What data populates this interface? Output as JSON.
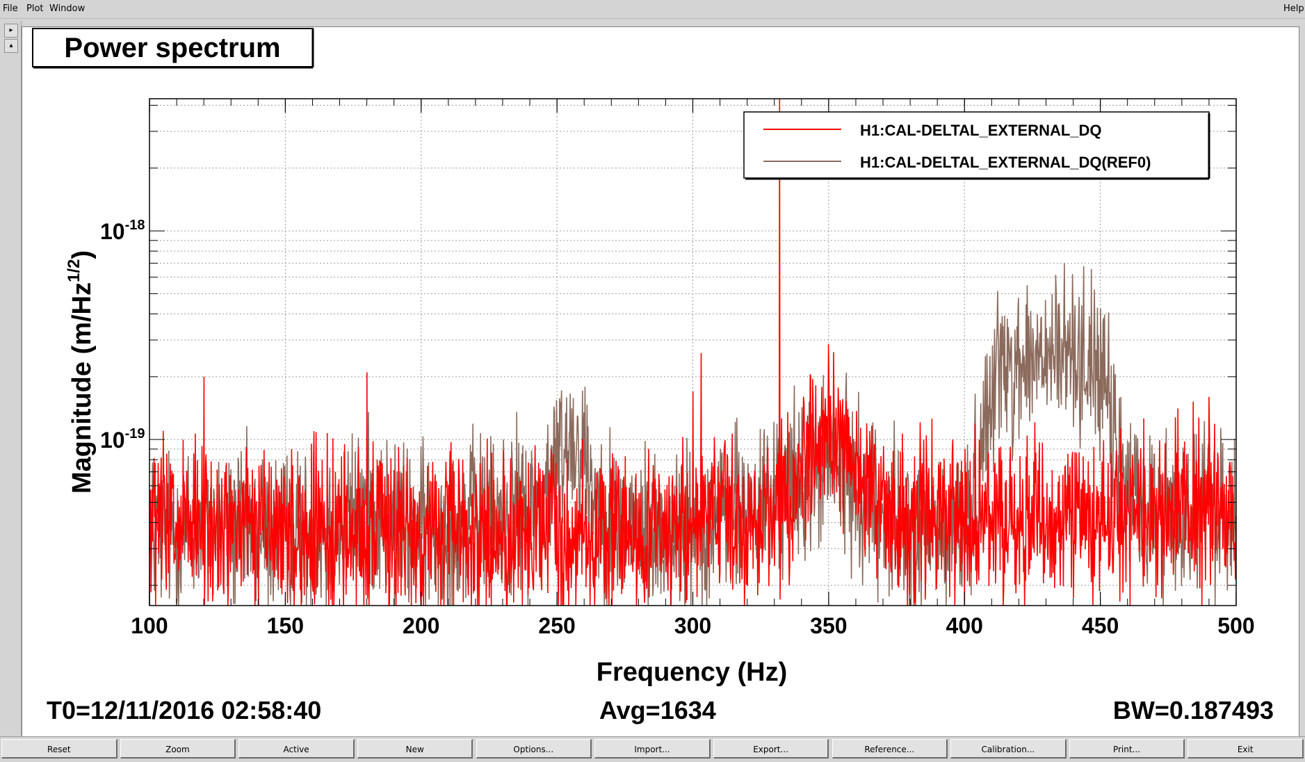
{
  "menu": {
    "file": "File",
    "plot": "Plot",
    "window": "Window",
    "help": "Help"
  },
  "side": {
    "up": "▸",
    "down": "▴"
  },
  "title": "Power spectrum",
  "footer": {
    "t0": "T0=12/11/2016 02:58:40",
    "avg": "Avg=1634",
    "bw": "BW=0.187493"
  },
  "colors": {
    "series_live": "#ff0000",
    "series_ref": "#8b6a5c"
  },
  "chart_data": {
    "type": "line",
    "title": "Power spectrum",
    "xlabel": "Frequency (Hz)",
    "ylabel_main": "Magnitude (m/Hz",
    "ylabel_sup": "1/2",
    "ylabel_close": ")",
    "xlim": [
      100,
      500
    ],
    "ylim": [
      1.6e-20,
      4.3e-18
    ],
    "yscale": "log",
    "grid": true,
    "legend_position": "top-right",
    "xticks": [
      "100",
      "150",
      "200",
      "250",
      "300",
      "350",
      "400",
      "450",
      "500"
    ],
    "ytick_labels": [
      {
        "value": 1e-18,
        "base": "10",
        "exp": "-18"
      },
      {
        "value": 1e-19,
        "base": "10",
        "exp": "-19"
      }
    ],
    "series": [
      {
        "name": "H1:CAL-DELTAL_EXTERNAL_DQ",
        "color": "#ff0000",
        "x": [
          100,
          110,
          120,
          130,
          140,
          150,
          160,
          170,
          180,
          190,
          200,
          210,
          220,
          230,
          240,
          250,
          260,
          270,
          280,
          290,
          300,
          310,
          320,
          330,
          340,
          345,
          350,
          355,
          360,
          370,
          380,
          390,
          400,
          410,
          420,
          430,
          440,
          450,
          460,
          470,
          480,
          490,
          500
        ],
        "y": [
          3.8e-20,
          3.7e-20,
          3.6e-20,
          3.8e-20,
          3.7e-20,
          3.6e-20,
          3.5e-20,
          3.6e-20,
          3.7e-20,
          3.6e-20,
          3.5e-20,
          3.6e-20,
          3.5e-20,
          3.4e-20,
          3.6e-20,
          3.6e-20,
          3.5e-20,
          3.4e-20,
          3.6e-20,
          3.7e-20,
          3.8e-20,
          4e-20,
          4.3e-20,
          4.5e-20,
          7e-20,
          1e-19,
          1.2e-19,
          1e-19,
          6.5e-20,
          4.6e-20,
          4.2e-20,
          4.1e-20,
          3.9e-20,
          4e-20,
          4.2e-20,
          4.2e-20,
          4.3e-20,
          4.4e-20,
          4.4e-20,
          4.3e-20,
          4.6e-20,
          5e-20,
          4.5e-20
        ],
        "peaks": [
          {
            "x": 105,
            "y": 1.1e-19
          },
          {
            "x": 120,
            "y": 2e-19
          },
          {
            "x": 180,
            "y": 2.1e-19
          },
          {
            "x": 300,
            "y": 1.7e-19
          },
          {
            "x": 303,
            "y": 2.6e-19
          },
          {
            "x": 331.9,
            "y": 4.3e-18
          },
          {
            "x": 490,
            "y": 1.6e-19
          }
        ]
      },
      {
        "name": "H1:CAL-DELTAL_EXTERNAL_DQ(REF0)",
        "color": "#8b6a5c",
        "x": [
          100,
          110,
          120,
          130,
          140,
          150,
          160,
          170,
          180,
          190,
          200,
          210,
          220,
          230,
          240,
          245,
          250,
          255,
          260,
          265,
          270,
          280,
          290,
          300,
          310,
          320,
          330,
          340,
          350,
          360,
          370,
          380,
          390,
          400,
          405,
          410,
          420,
          430,
          440,
          445,
          450,
          455,
          460,
          470,
          480,
          490,
          500
        ],
        "y": [
          3.6e-20,
          3.6e-20,
          3.8e-20,
          3.7e-20,
          3.6e-20,
          3.5e-20,
          3.6e-20,
          3.8e-20,
          4.8e-20,
          4e-20,
          3.6e-20,
          3.8e-20,
          4.2e-20,
          4.4e-20,
          4.6e-20,
          5e-20,
          8e-20,
          1.05e-19,
          8.5e-20,
          5e-20,
          4.2e-20,
          3.6e-20,
          3.5e-20,
          3.7e-20,
          4.2e-20,
          4.6e-20,
          5.2e-20,
          6.5e-20,
          8e-20,
          6e-20,
          4.5e-20,
          3.4e-20,
          3.5e-20,
          3.9e-20,
          6e-20,
          2.2e-19,
          2.3e-19,
          2.4e-19,
          2.6e-19,
          2.5e-19,
          2.2e-19,
          1e-19,
          5.5e-20,
          4.6e-20,
          4.5e-20,
          4.6e-20,
          4.4e-20
        ],
        "peaks": [
          {
            "x": 165,
            "y": 1.4e-20
          },
          {
            "x": 186,
            "y": 5.5e-20
          },
          {
            "x": 260,
            "y": 1.35e-19
          },
          {
            "x": 440,
            "y": 4.3e-19
          }
        ]
      }
    ]
  },
  "toolbar": [
    "Reset",
    "Zoom",
    "Active",
    "New",
    "Options...",
    "Import...",
    "Export...",
    "Reference...",
    "Calibration...",
    "Print...",
    "Exit"
  ]
}
